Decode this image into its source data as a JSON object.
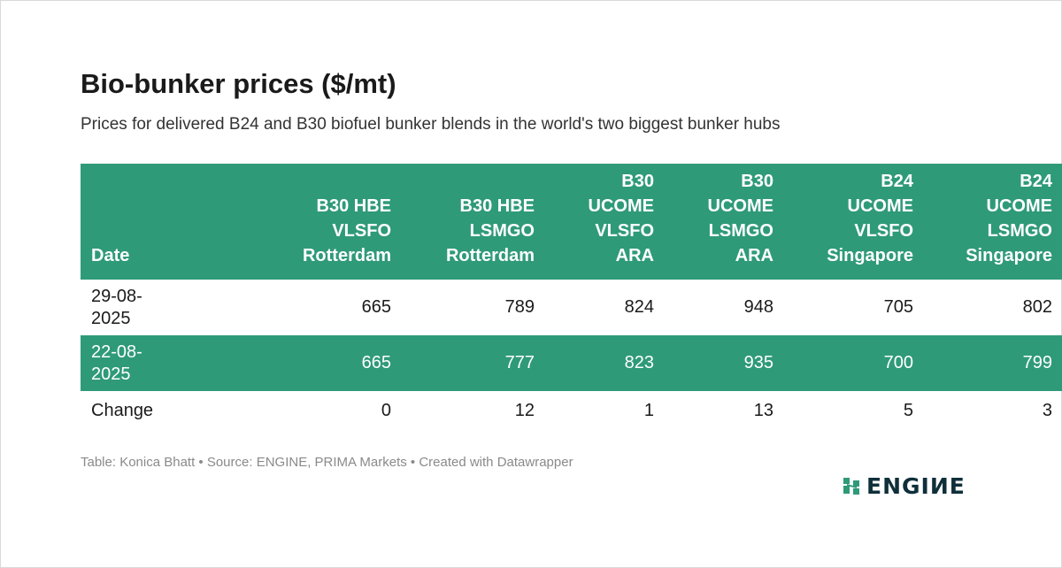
{
  "title": "Bio-bunker prices ($/mt)",
  "subtitle": "Prices for delivered B24 and B30 biofuel bunker blends in the world's two biggest bunker hubs",
  "chart_data": {
    "type": "table",
    "columns": [
      {
        "label": "Date",
        "lines": [
          "Date"
        ]
      },
      {
        "label": "B30 HBE VLSFO Rotterdam",
        "lines": [
          "B30 HBE",
          "VLSFO",
          "Rotterdam"
        ]
      },
      {
        "label": "B30 HBE LSMGO Rotterdam",
        "lines": [
          "B30 HBE",
          "LSMGO",
          "Rotterdam"
        ]
      },
      {
        "label": "B30 UCOME VLSFO ARA",
        "lines": [
          "B30",
          "UCOME",
          "VLSFO",
          "ARA"
        ]
      },
      {
        "label": "B30 UCOME LSMGO ARA",
        "lines": [
          "B30",
          "UCOME",
          "LSMGO",
          "ARA"
        ]
      },
      {
        "label": "B24 UCOME VLSFO Singapore",
        "lines": [
          "B24",
          "UCOME",
          "VLSFO",
          "Singapore"
        ]
      },
      {
        "label": "B24 UCOME LSMGO Singapore",
        "lines": [
          "B24",
          "UCOME",
          "LSMGO",
          "Singapore"
        ]
      }
    ],
    "rows": [
      {
        "date_lines": [
          "29-08-",
          "2025"
        ],
        "values": [
          665,
          789,
          824,
          948,
          705,
          802
        ]
      },
      {
        "date_lines": [
          "22-08-",
          "2025"
        ],
        "values": [
          665,
          777,
          823,
          935,
          700,
          799
        ]
      },
      {
        "date_lines": [
          "Change"
        ],
        "values": [
          0,
          12,
          1,
          13,
          5,
          3
        ]
      }
    ]
  },
  "footer": {
    "source": "Table: Konica Bhatt • Source: ENGINE, PRIMA Markets • Created with Datawrapper"
  },
  "logo": {
    "text": "ENGIИE",
    "icon": "engine-logo-icon"
  },
  "colors": {
    "accent": "#2f9a78",
    "logo_text": "#0f2f3a",
    "logo_mark": "#2f9a78"
  }
}
